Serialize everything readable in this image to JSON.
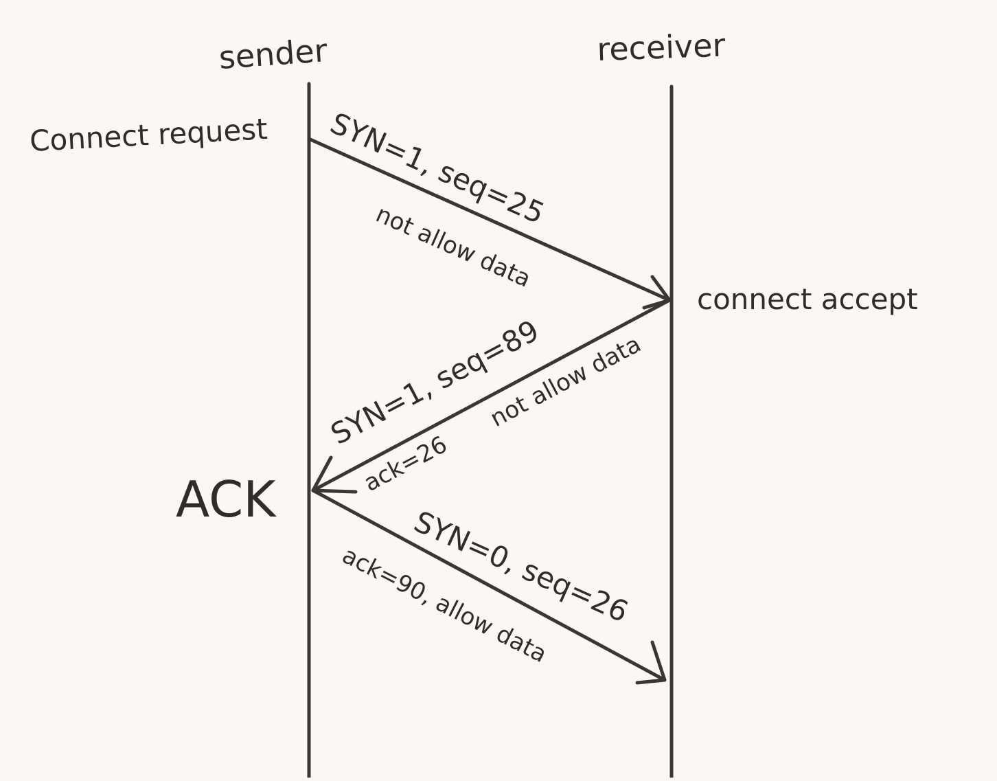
{
  "colors": {
    "background": "#fbf8f3",
    "ink": "#2f2c2b"
  },
  "participants": {
    "sender": "sender",
    "receiver": "receiver"
  },
  "side_notes": {
    "connect_request": "Connect request",
    "connect_accept": "connect accept",
    "ack": "ACK"
  },
  "messages": [
    {
      "direction": "sender-to-receiver",
      "line1": "SYN=1, seq=25",
      "line2": "not allow data"
    },
    {
      "direction": "receiver-to-sender",
      "line1": "SYN=1, seq=89",
      "line2": "ack=26",
      "line3": "not allow data"
    },
    {
      "direction": "sender-to-receiver",
      "line1": "SYN=0, seq=26",
      "line2": "ack=90, allow data"
    }
  ]
}
